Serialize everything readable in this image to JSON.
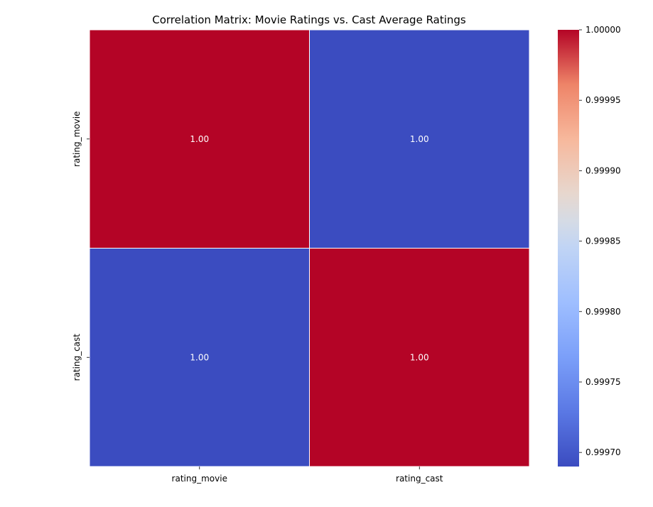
{
  "chart_data": {
    "type": "heatmap",
    "title": "Correlation Matrix: Movie Ratings vs. Cast Average Ratings",
    "x_categories": [
      "rating_movie",
      "rating_cast"
    ],
    "y_categories": [
      "rating_movie",
      "rating_cast"
    ],
    "values": [
      [
        1.0,
        0.99969
      ],
      [
        0.99969,
        1.0
      ]
    ],
    "cell_labels": [
      [
        "1.00",
        "1.00"
      ],
      [
        "1.00",
        "1.00"
      ]
    ],
    "colormap": "coolwarm",
    "colors": {
      "low": "#3b4cc0",
      "high": "#b40426"
    },
    "colorbar": {
      "range": [
        0.99969,
        1.0
      ],
      "ticks": [
        0.9997,
        0.99975,
        0.9998,
        0.99985,
        0.9999,
        0.99995,
        1.0
      ],
      "tick_labels": [
        "0.99970",
        "0.99975",
        "0.99980",
        "0.99985",
        "0.99990",
        "0.99995",
        "1.00000"
      ]
    },
    "grid_lines": true
  }
}
